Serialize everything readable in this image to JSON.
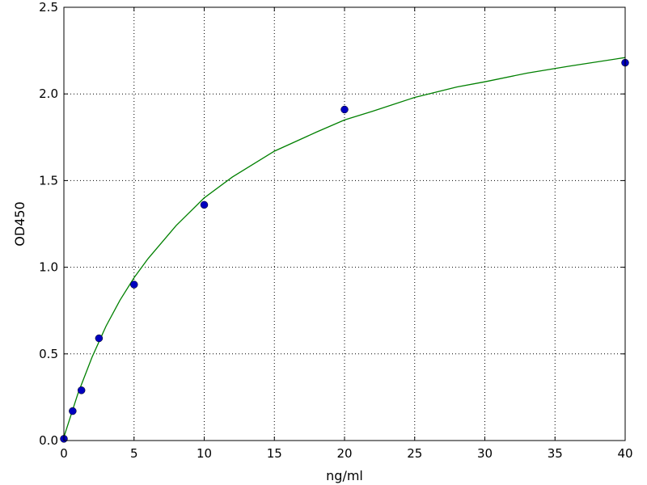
{
  "chart_data": {
    "type": "scatter",
    "title": "",
    "xlabel": "ng/ml",
    "ylabel": "OD450",
    "xlim": [
      0,
      40
    ],
    "ylim": [
      0,
      2.5
    ],
    "grid": true,
    "xticks": [
      "0",
      "5",
      "10",
      "15",
      "20",
      "25",
      "30",
      "35",
      "40"
    ],
    "yticks": [
      "0.0",
      "0.5",
      "1.0",
      "1.5",
      "2.0",
      "2.5"
    ],
    "points": {
      "color": "#0000bf",
      "x": [
        0,
        0.625,
        1.25,
        2.5,
        5,
        10,
        20,
        40
      ],
      "y": [
        0.01,
        0.17,
        0.29,
        0.59,
        0.9,
        1.36,
        1.91,
        2.18
      ]
    },
    "fit_curve": {
      "color": "#008000",
      "x": [
        0,
        1,
        2,
        3,
        4,
        5,
        6,
        8,
        10,
        12,
        15,
        18,
        20,
        22,
        25,
        28,
        30,
        33,
        36,
        40
      ],
      "y": [
        0.02,
        0.27,
        0.48,
        0.66,
        0.81,
        0.94,
        1.05,
        1.24,
        1.4,
        1.52,
        1.67,
        1.78,
        1.85,
        1.9,
        1.98,
        2.04,
        2.07,
        2.12,
        2.16,
        2.21
      ]
    }
  }
}
